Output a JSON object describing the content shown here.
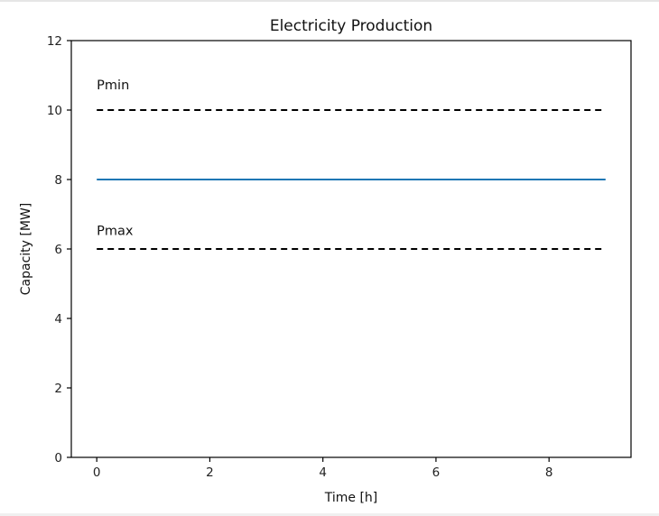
{
  "chart_data": {
    "type": "line",
    "title": "Electricity Production",
    "xlabel": "Time [h]",
    "ylabel": "Capacity [MW]",
    "xlim": [
      -0.45,
      9.45
    ],
    "ylim": [
      0,
      12
    ],
    "x_ticks": [
      0,
      2,
      4,
      6,
      8
    ],
    "y_ticks": [
      0,
      2,
      4,
      6,
      8,
      10,
      12
    ],
    "grid": false,
    "series": [
      {
        "x": [
          0,
          9
        ],
        "values": [
          8,
          8
        ],
        "color": "#1f77b4",
        "style": "solid"
      },
      {
        "x": [
          0,
          9
        ],
        "values": [
          10,
          10
        ],
        "color": "#000000",
        "style": "dashed"
      },
      {
        "x": [
          0,
          9
        ],
        "values": [
          6,
          6
        ],
        "color": "#000000",
        "style": "dashed"
      }
    ],
    "annotations": [
      {
        "text": "Pmin",
        "x": 0,
        "y": 10.6
      },
      {
        "text": "Pmax",
        "x": 0,
        "y": 6.4
      }
    ]
  }
}
